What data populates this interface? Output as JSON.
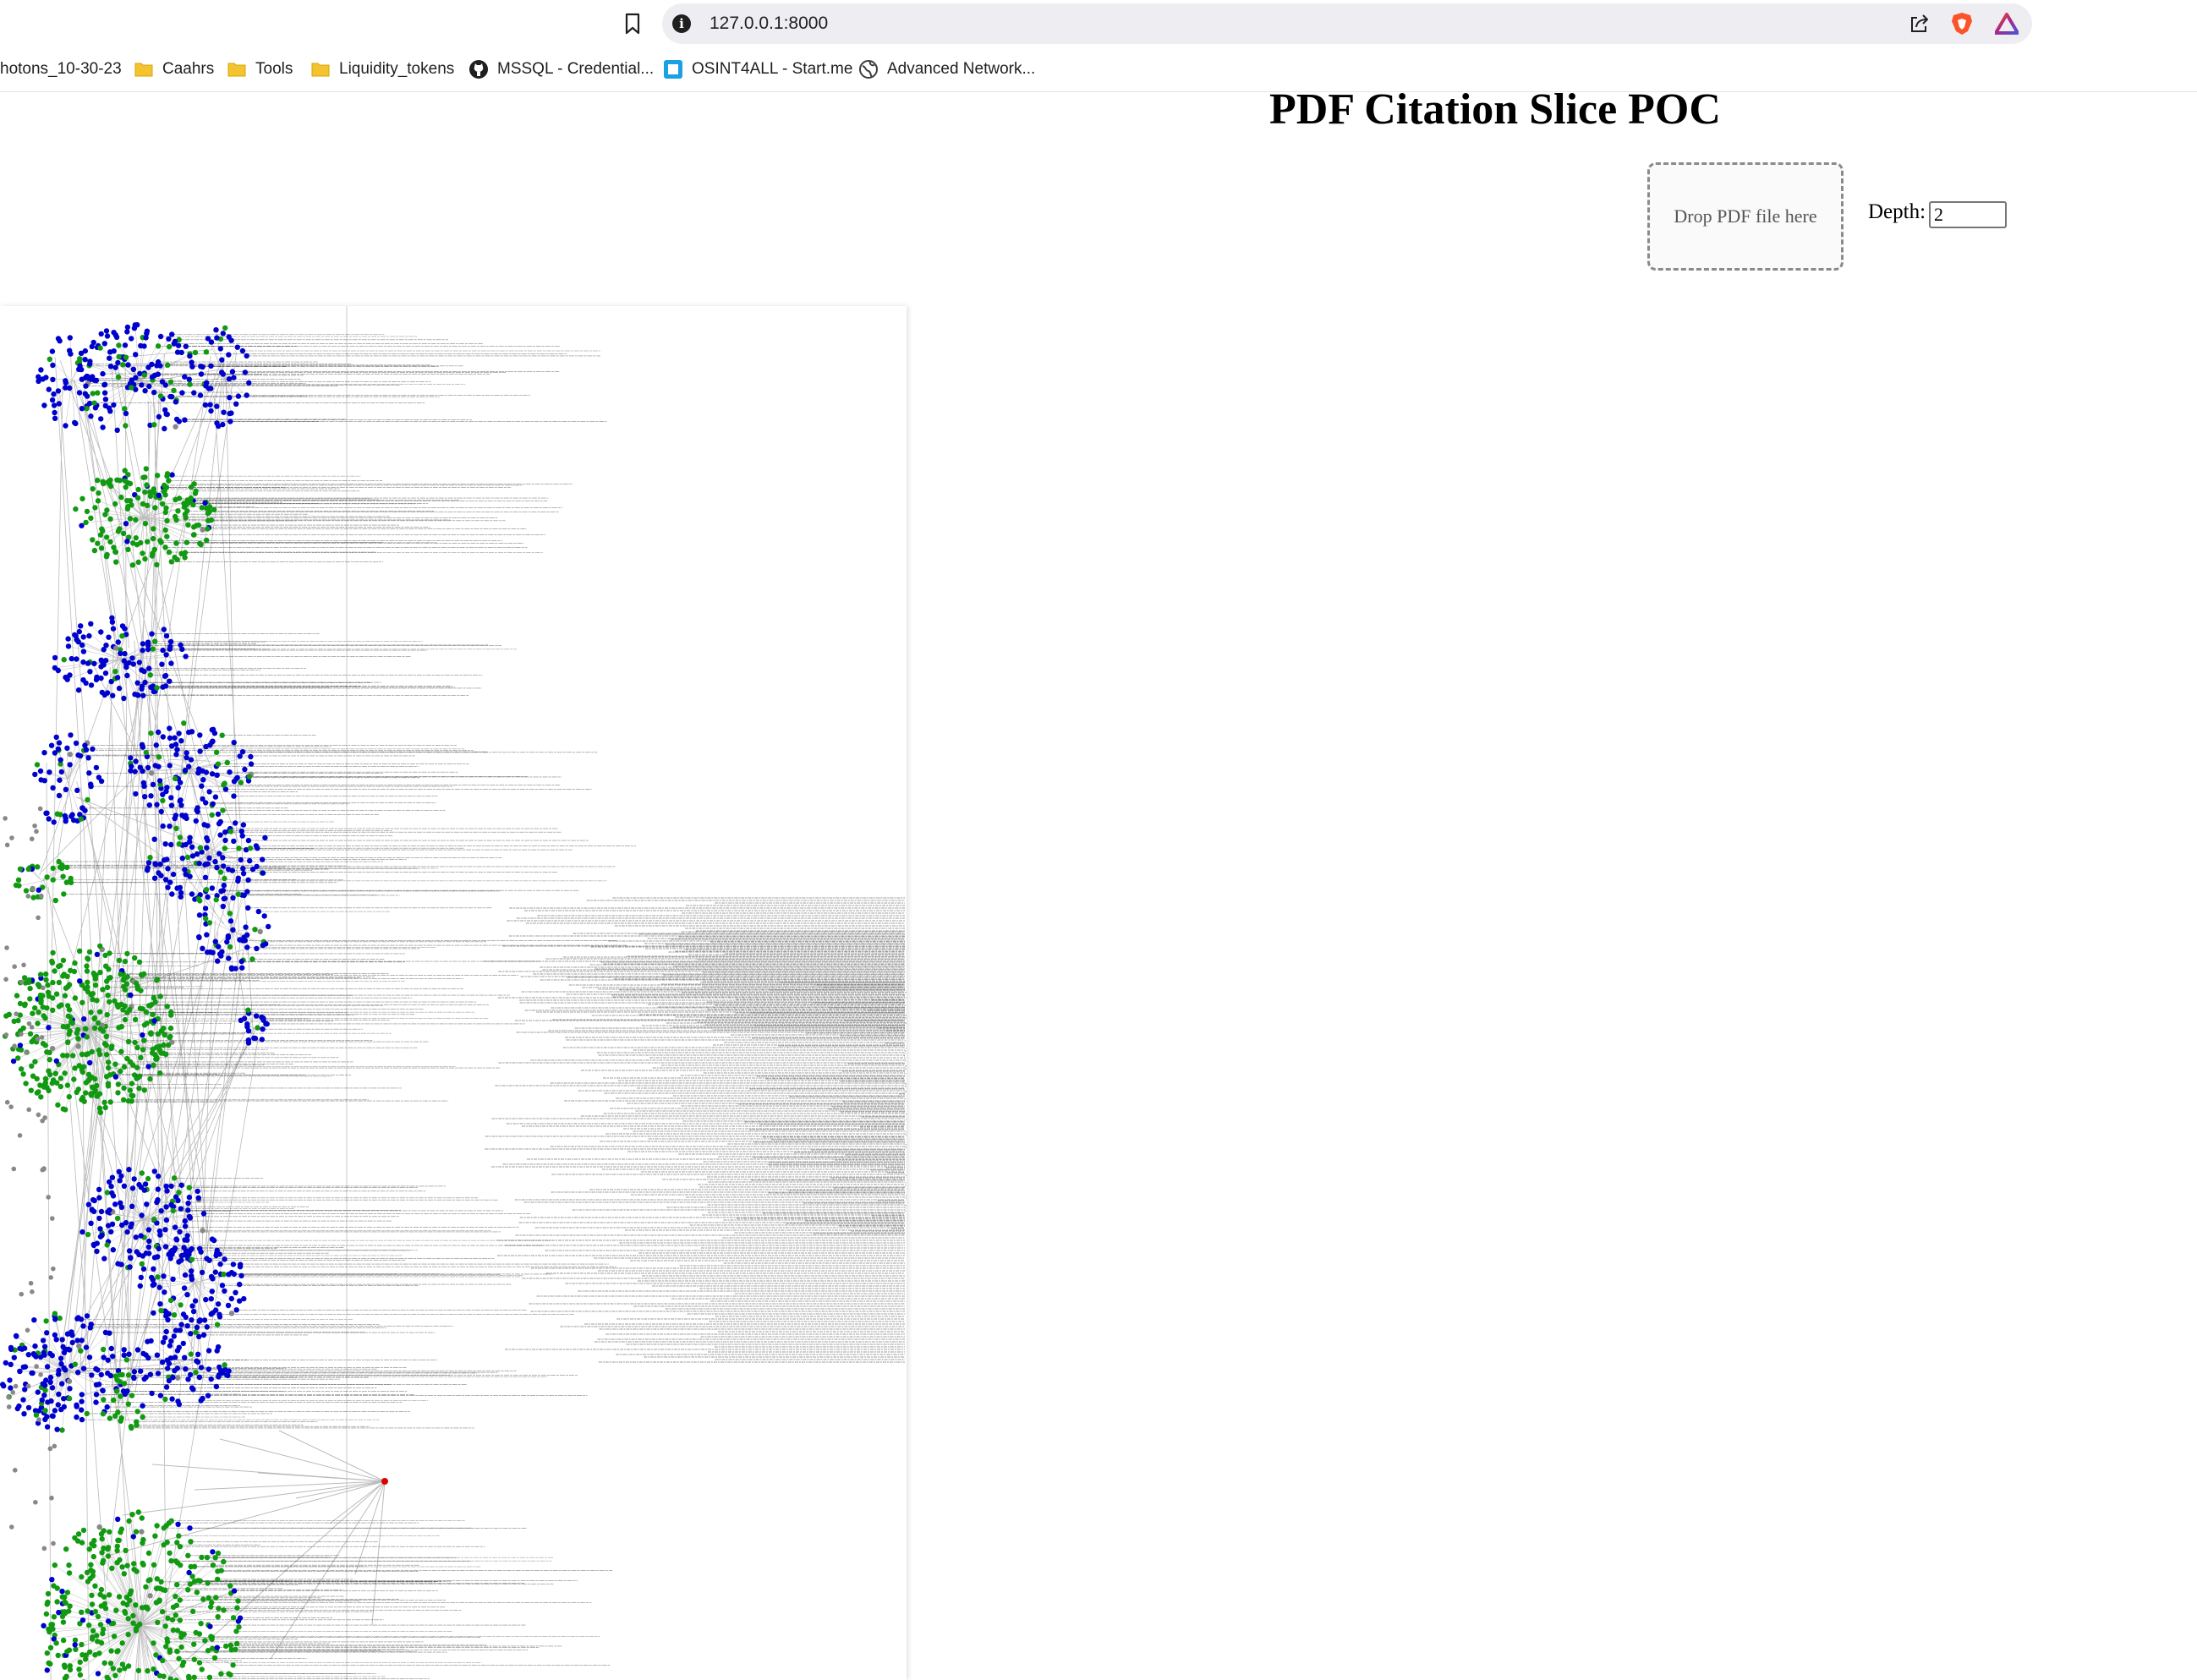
{
  "browser": {
    "url": "127.0.0.1:8000",
    "icons": [
      "bookmark-icon",
      "site-info-icon",
      "share-icon",
      "brave-shields-icon",
      "brave-rewards-icon"
    ],
    "bookmarks": [
      {
        "label": "hotons_10-30-23",
        "icon": "none"
      },
      {
        "label": "Caahrs",
        "icon": "folder-icon"
      },
      {
        "label": "Tools",
        "icon": "folder-icon"
      },
      {
        "label": "Liquidity_tokens",
        "icon": "folder-icon"
      },
      {
        "label": "MSSQL - Credential...",
        "icon": "github-icon"
      },
      {
        "label": "OSINT4ALL - Start.me",
        "icon": "startme-icon"
      },
      {
        "label": "Advanced Network...",
        "icon": "globe-icon"
      }
    ]
  },
  "page": {
    "title": "PDF Citation Slice POC",
    "drop_zone_text": "Drop PDF file here",
    "depth_label": "Depth:",
    "depth_value": "2"
  },
  "graph": {
    "node_colors": {
      "citation": "#0000cc",
      "reference": "#119911",
      "other": "#888888",
      "root": "#dd0000"
    },
    "edge_color": "#bbbbbb",
    "label_color": "#222222"
  }
}
